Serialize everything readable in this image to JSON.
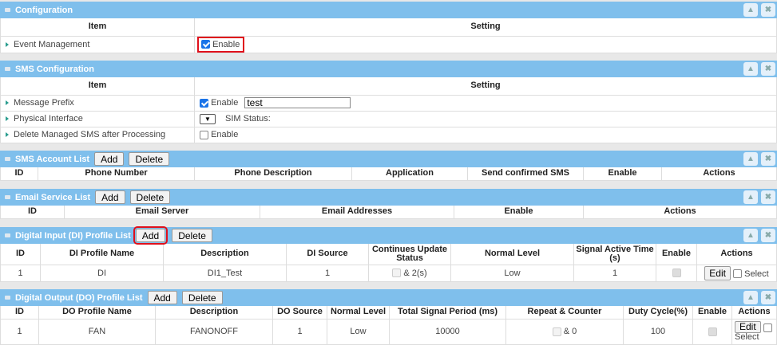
{
  "config": {
    "title": "Configuration",
    "col_item": "Item",
    "col_setting": "Setting",
    "rows": [
      {
        "label": "Event Management",
        "enable": "Enable",
        "checked": true
      }
    ]
  },
  "sms_config": {
    "title": "SMS Configuration",
    "col_item": "Item",
    "col_setting": "Setting",
    "message_prefix": {
      "label": "Message Prefix",
      "enable": "Enable",
      "checked": true,
      "value": "test"
    },
    "physical_interface": {
      "label": "Physical Interface",
      "sim_status": "SIM Status:"
    },
    "delete_managed": {
      "label": "Delete Managed SMS after Processing",
      "enable": "Enable",
      "checked": false
    }
  },
  "sms_account": {
    "title": "SMS Account List",
    "add": "Add",
    "delete": "Delete",
    "columns": [
      "ID",
      "Phone Number",
      "Phone Description",
      "Application",
      "Send confirmed SMS",
      "Enable",
      "Actions"
    ]
  },
  "email_service": {
    "title": "Email Service List",
    "add": "Add",
    "delete": "Delete",
    "columns": [
      "ID",
      "Email Server",
      "Email Addresses",
      "Enable",
      "Actions"
    ]
  },
  "di_profile": {
    "title": "Digital Input (DI) Profile List",
    "add": "Add",
    "delete": "Delete",
    "columns": [
      "ID",
      "DI Profile Name",
      "Description",
      "DI Source",
      "Continues Update Status",
      "Normal Level",
      "Signal Active Time (s)",
      "Enable",
      "Actions"
    ],
    "rows": [
      {
        "id": "1",
        "name": "DI",
        "description": "DI1_Test",
        "source": "1",
        "continues": "& 2(s)",
        "normal_level": "Low",
        "signal_active_time": "1",
        "edit": "Edit",
        "select": "Select"
      }
    ]
  },
  "do_profile": {
    "title": "Digital Output (DO) Profile List",
    "add": "Add",
    "delete": "Delete",
    "columns": [
      "ID",
      "DO Profile Name",
      "Description",
      "DO Source",
      "Normal Level",
      "Total Signal Period (ms)",
      "Repeat & Counter",
      "Duty Cycle(%)",
      "Enable",
      "Actions"
    ],
    "rows": [
      {
        "id": "1",
        "name": "FAN",
        "description": "FANONOFF",
        "source": "1",
        "normal_level": "Low",
        "total_period": "10000",
        "repeat": "& 0",
        "duty_cycle": "100",
        "edit": "Edit",
        "select": "Select"
      }
    ]
  },
  "colors": {
    "header": "#7fbfec",
    "highlight": "#e0101b"
  }
}
